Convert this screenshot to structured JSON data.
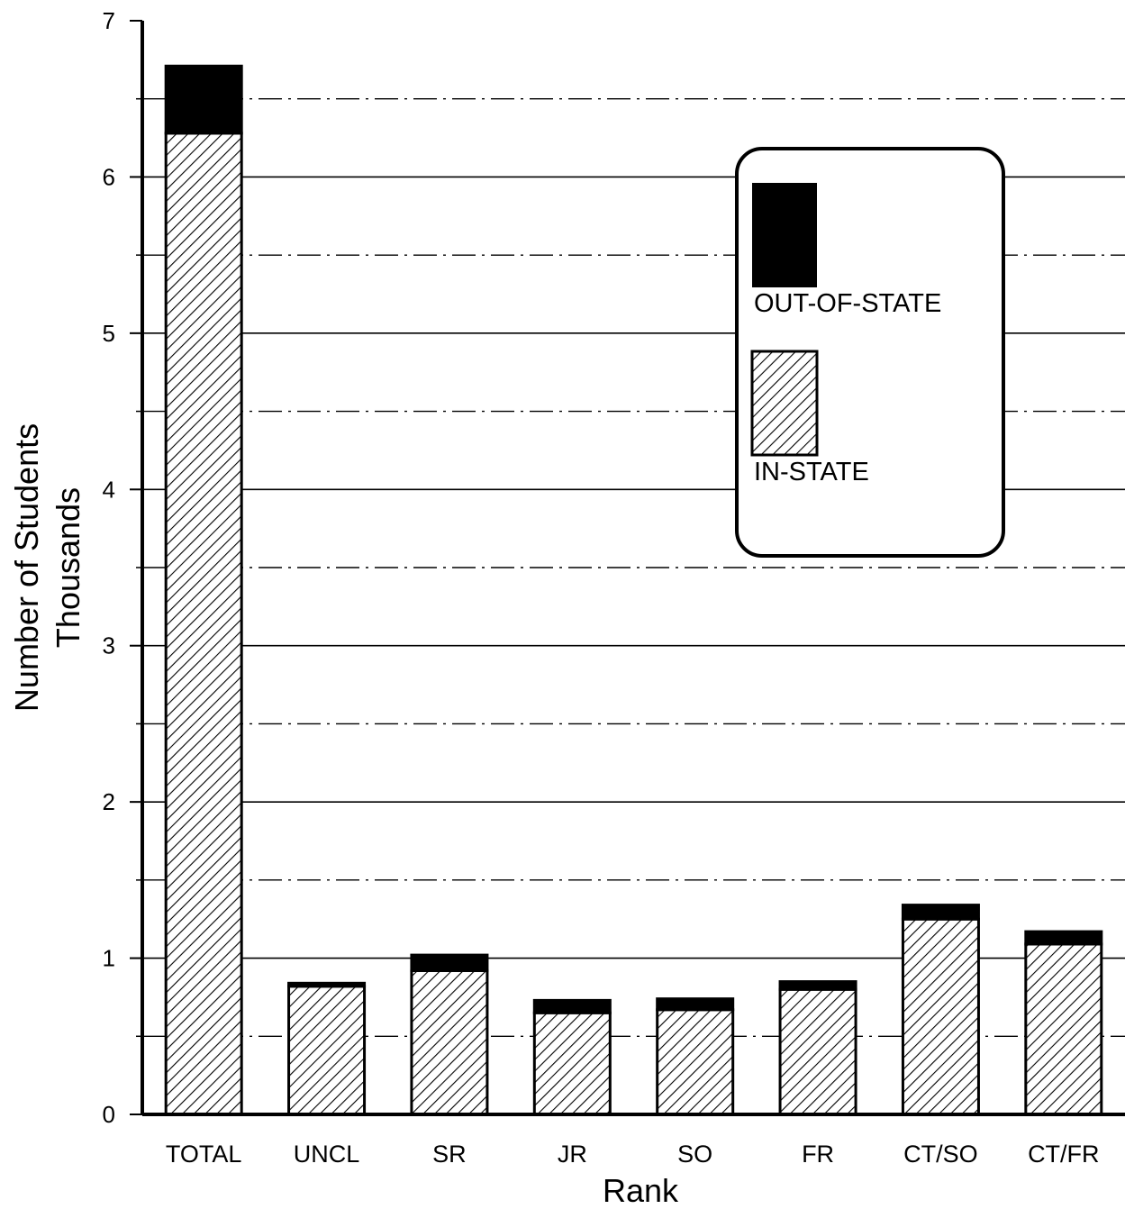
{
  "chart_data": {
    "type": "bar",
    "stacked": true,
    "title": "",
    "xlabel": "Rank",
    "ylabel": [
      "Number of Students",
      "Thousands"
    ],
    "categories": [
      "TOTAL",
      "UNCL",
      "SR",
      "JR",
      "SO",
      "FR",
      "CT/SO",
      "CT/FR"
    ],
    "series": [
      {
        "name": "IN-STATE",
        "values": [
          6.28,
          0.82,
          0.92,
          0.65,
          0.67,
          0.8,
          1.25,
          1.09
        ],
        "fill": "hatched"
      },
      {
        "name": "OUT-OF-STATE",
        "values": [
          0.43,
          0.02,
          0.1,
          0.08,
          0.07,
          0.05,
          0.09,
          0.08
        ],
        "fill": "#000000"
      }
    ],
    "ylim": [
      0,
      7
    ],
    "yticks": [
      "0",
      "1",
      "2",
      "3",
      "4",
      "5",
      "6",
      "7"
    ],
    "grid": {
      "major": "solid",
      "minor": "dash-dot"
    },
    "legend": {
      "position": "upper-right",
      "order": [
        "OUT-OF-STATE",
        "IN-STATE"
      ]
    },
    "colors": {
      "out_of_state": "#000000",
      "in_state_hatch": "#000000",
      "background": "#ffffff"
    }
  }
}
